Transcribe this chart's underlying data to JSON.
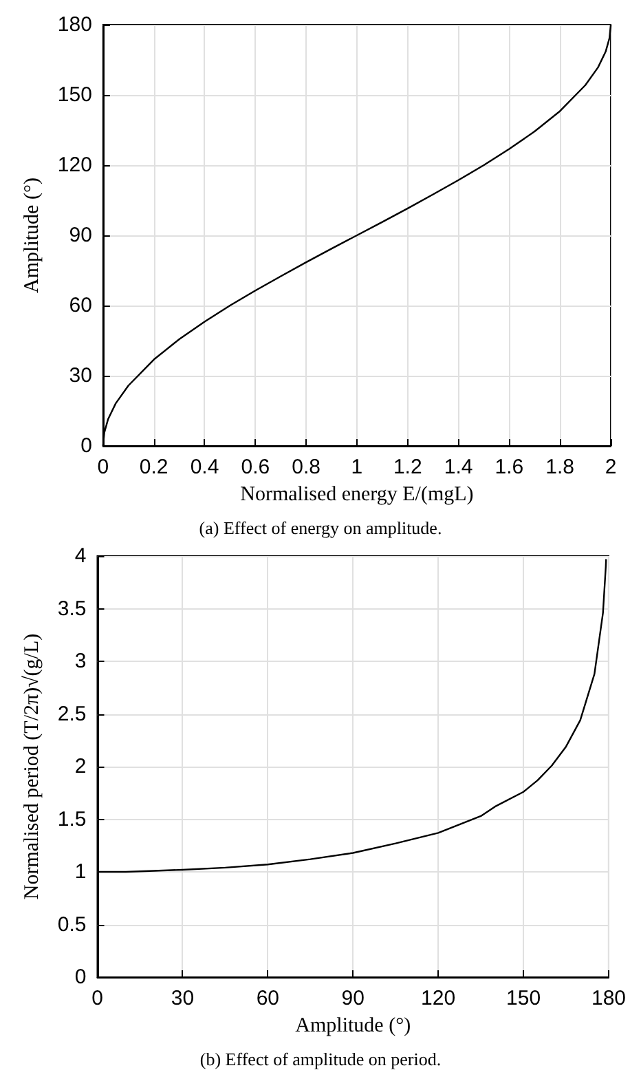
{
  "chart_data": [
    {
      "type": "line",
      "xlabel": "Normalised energy E/(mgL)",
      "ylabel": "Amplitude (°)",
      "annotations": [
        "(a) Effect of energy on amplitude."
      ],
      "series": [
        {
          "color": "#000000",
          "x": [
            0,
            0.005,
            0.02,
            0.05,
            0.1,
            0.2,
            0.3,
            0.4,
            0.5,
            0.6,
            0.7,
            0.8,
            0.9,
            1.0,
            1.1,
            1.2,
            1.3,
            1.4,
            1.5,
            1.6,
            1.7,
            1.8,
            1.9,
            1.95,
            1.98,
            1.995,
            2.0
          ],
          "values": [
            0,
            5.7,
            11.5,
            18.2,
            25.8,
            36.9,
            45.6,
            53.1,
            60,
            66.4,
            72.5,
            78.5,
            84.3,
            90,
            95.7,
            101.5,
            107.5,
            113.6,
            120,
            126.9,
            134.4,
            143.1,
            154.2,
            161.8,
            168.5,
            174.3,
            180
          ]
        }
      ],
      "xlim": [
        0,
        2
      ],
      "xticks": [
        0,
        0.2,
        0.4,
        0.6,
        0.8,
        1,
        1.2,
        1.4,
        1.6,
        1.8,
        2
      ],
      "ylim": [
        0,
        180
      ],
      "yticks": [
        0,
        30,
        60,
        90,
        120,
        150,
        180
      ],
      "grid": true,
      "marker": "none",
      "line_style": "solid"
    },
    {
      "type": "line",
      "xlabel": "Amplitude (°)",
      "ylabel": "Normalised period (T/2π)√(g/L)",
      "annotations": [
        "(b) Effect of amplitude on period."
      ],
      "series": [
        {
          "color": "#000000",
          "x": [
            0,
            10,
            20,
            30,
            45,
            60,
            75,
            90,
            105,
            120,
            135,
            140,
            150,
            155,
            160,
            165,
            170,
            175,
            178,
            179,
            179.1
          ],
          "values": [
            1,
            1,
            1.01,
            1.02,
            1.04,
            1.07,
            1.12,
            1.18,
            1.27,
            1.37,
            1.53,
            1.62,
            1.76,
            1.87,
            2.01,
            2.19,
            2.44,
            2.88,
            3.46,
            3.9,
            3.97
          ]
        }
      ],
      "xlim": [
        0,
        180
      ],
      "xticks": [
        0,
        30,
        60,
        90,
        120,
        150,
        180
      ],
      "ylim": [
        0,
        4
      ],
      "yticks": [
        0,
        0.5,
        1,
        1.5,
        2,
        2.5,
        3,
        3.5,
        4
      ],
      "grid": true,
      "marker": "none",
      "line_style": "solid"
    }
  ]
}
